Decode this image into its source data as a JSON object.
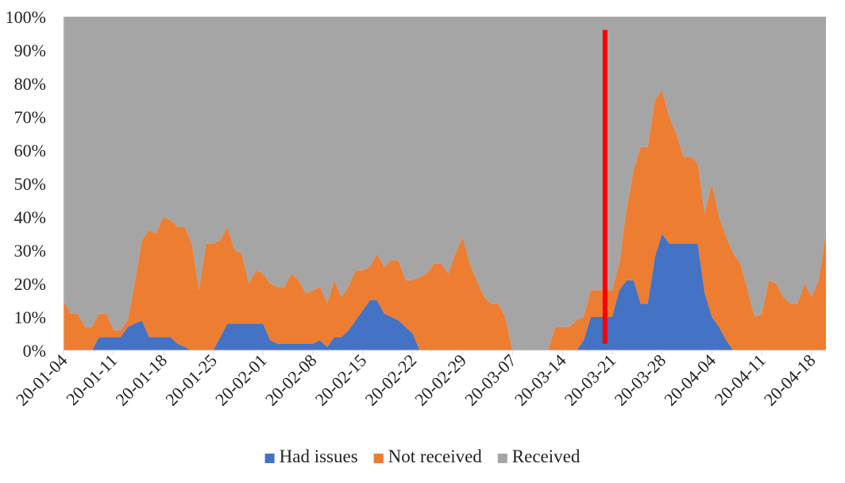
{
  "chart_data": {
    "type": "area",
    "stacked": true,
    "percent_stacked": true,
    "title": "",
    "xlabel": "",
    "ylabel": "",
    "ylim": [
      0,
      100
    ],
    "y_ticks": [
      "0%",
      "10%",
      "20%",
      "30%",
      "40%",
      "50%",
      "60%",
      "70%",
      "80%",
      "90%",
      "100%"
    ],
    "x_tick_labels": [
      "20-01-04",
      "20-01-11",
      "20-01-18",
      "20-01-25",
      "20-02-01",
      "20-02-08",
      "20-02-15",
      "20-02-22",
      "20-02-29",
      "20-03-07",
      "20-03-14",
      "20-03-21",
      "20-03-28",
      "20-04-04",
      "20-04-11",
      "20-04-18"
    ],
    "x": [
      "2020-01-04",
      "2020-01-05",
      "2020-01-06",
      "2020-01-07",
      "2020-01-08",
      "2020-01-09",
      "2020-01-10",
      "2020-01-11",
      "2020-01-12",
      "2020-01-13",
      "2020-01-14",
      "2020-01-15",
      "2020-01-16",
      "2020-01-17",
      "2020-01-18",
      "2020-01-19",
      "2020-01-20",
      "2020-01-21",
      "2020-01-22",
      "2020-01-23",
      "2020-01-24",
      "2020-01-25",
      "2020-01-26",
      "2020-01-27",
      "2020-01-28",
      "2020-01-29",
      "2020-01-30",
      "2020-01-31",
      "2020-02-01",
      "2020-02-02",
      "2020-02-03",
      "2020-02-04",
      "2020-02-05",
      "2020-02-06",
      "2020-02-07",
      "2020-02-08",
      "2020-02-09",
      "2020-02-10",
      "2020-02-11",
      "2020-02-12",
      "2020-02-13",
      "2020-02-14",
      "2020-02-15",
      "2020-02-16",
      "2020-02-17",
      "2020-02-18",
      "2020-02-19",
      "2020-02-20",
      "2020-02-21",
      "2020-02-22",
      "2020-02-23",
      "2020-02-24",
      "2020-02-25",
      "2020-02-26",
      "2020-02-27",
      "2020-02-28",
      "2020-02-29",
      "2020-03-01",
      "2020-03-02",
      "2020-03-03",
      "2020-03-04",
      "2020-03-05",
      "2020-03-06",
      "2020-03-07",
      "2020-03-08",
      "2020-03-09",
      "2020-03-10",
      "2020-03-11",
      "2020-03-12",
      "2020-03-13",
      "2020-03-14",
      "2020-03-15",
      "2020-03-16",
      "2020-03-17",
      "2020-03-18",
      "2020-03-19",
      "2020-03-20",
      "2020-03-21",
      "2020-03-22",
      "2020-03-23",
      "2020-03-24",
      "2020-03-25",
      "2020-03-26",
      "2020-03-27",
      "2020-03-28",
      "2020-03-29",
      "2020-03-30",
      "2020-03-31",
      "2020-04-01",
      "2020-04-02",
      "2020-04-03",
      "2020-04-04",
      "2020-04-05",
      "2020-04-06",
      "2020-04-07",
      "2020-04-08",
      "2020-04-09",
      "2020-04-10",
      "2020-04-11",
      "2020-04-12",
      "2020-04-13",
      "2020-04-14",
      "2020-04-15",
      "2020-04-16",
      "2020-04-17",
      "2020-04-18",
      "2020-04-19",
      "2020-04-20"
    ],
    "series": [
      {
        "name": "Had issues",
        "color": "#4472C4",
        "values": [
          0,
          0,
          0,
          0,
          0,
          4,
          4,
          4,
          4,
          7,
          8,
          9,
          4,
          4,
          4,
          4,
          2,
          1,
          0,
          0,
          0,
          0,
          4,
          8,
          8,
          8,
          8,
          8,
          8,
          3,
          2,
          2,
          2,
          2,
          2,
          2,
          3,
          1,
          4,
          4,
          6,
          9,
          12,
          15,
          15,
          11,
          10,
          9,
          7,
          5,
          0,
          0,
          0,
          0,
          0,
          0,
          0,
          0,
          0,
          0,
          0,
          0,
          0,
          0,
          0,
          0,
          0,
          0,
          0,
          0,
          0,
          0,
          0,
          3,
          10,
          10,
          10,
          10,
          18,
          21,
          21,
          14,
          14,
          28,
          35,
          32,
          32,
          32,
          32,
          32,
          17,
          10,
          7,
          3,
          0,
          0,
          0,
          0,
          0,
          0,
          0,
          0,
          0,
          0,
          0,
          0,
          0,
          0
        ]
      },
      {
        "name": "Not received",
        "color": "#ED7D31",
        "values": [
          15,
          11,
          11,
          7,
          7,
          7,
          7,
          2,
          2,
          2,
          12,
          24,
          32,
          31,
          36,
          35,
          35,
          36,
          32,
          18,
          32,
          32,
          29,
          29,
          22,
          21,
          12,
          16,
          15,
          17,
          17,
          17,
          21,
          19,
          15,
          16,
          16,
          13,
          17,
          12,
          13,
          15,
          12,
          10,
          14,
          14,
          17,
          18,
          14,
          16,
          22,
          23,
          26,
          26,
          23,
          29,
          34,
          26,
          21,
          16,
          14,
          14,
          10,
          0,
          0,
          0,
          0,
          0,
          0,
          7,
          7,
          7,
          9,
          7,
          8,
          8,
          8,
          8,
          8,
          21,
          33,
          47,
          47,
          47,
          43,
          38,
          33,
          26,
          26,
          24,
          24,
          40,
          33,
          31,
          29,
          26,
          18,
          10,
          11,
          21,
          20,
          16,
          14,
          14,
          20,
          16,
          21,
          35
        ]
      },
      {
        "name": "Received",
        "color": "#A5A5A5",
        "values": [
          85,
          89,
          89,
          93,
          93,
          89,
          89,
          94,
          94,
          91,
          80,
          67,
          64,
          65,
          60,
          61,
          63,
          63,
          68,
          82,
          68,
          68,
          67,
          63,
          70,
          71,
          80,
          76,
          77,
          80,
          81,
          81,
          77,
          79,
          83,
          82,
          81,
          86,
          79,
          84,
          81,
          76,
          76,
          75,
          71,
          75,
          73,
          73,
          79,
          79,
          78,
          77,
          74,
          74,
          77,
          71,
          66,
          74,
          79,
          84,
          86,
          86,
          90,
          100,
          100,
          100,
          100,
          100,
          100,
          93,
          93,
          93,
          91,
          90,
          82,
          82,
          82,
          82,
          74,
          58,
          46,
          39,
          39,
          25,
          22,
          30,
          35,
          42,
          42,
          44,
          59,
          50,
          60,
          66,
          71,
          74,
          82,
          90,
          89,
          79,
          80,
          84,
          86,
          86,
          80,
          84,
          79,
          65
        ]
      }
    ],
    "annotations": [
      {
        "type": "vertical-line",
        "x": "2020-03-20",
        "color": "#FF0000",
        "y_from": 2,
        "y_to": 96
      }
    ],
    "grid": false,
    "legend": {
      "position": "bottom",
      "entries": [
        "Had issues",
        "Not received",
        "Received"
      ]
    }
  }
}
